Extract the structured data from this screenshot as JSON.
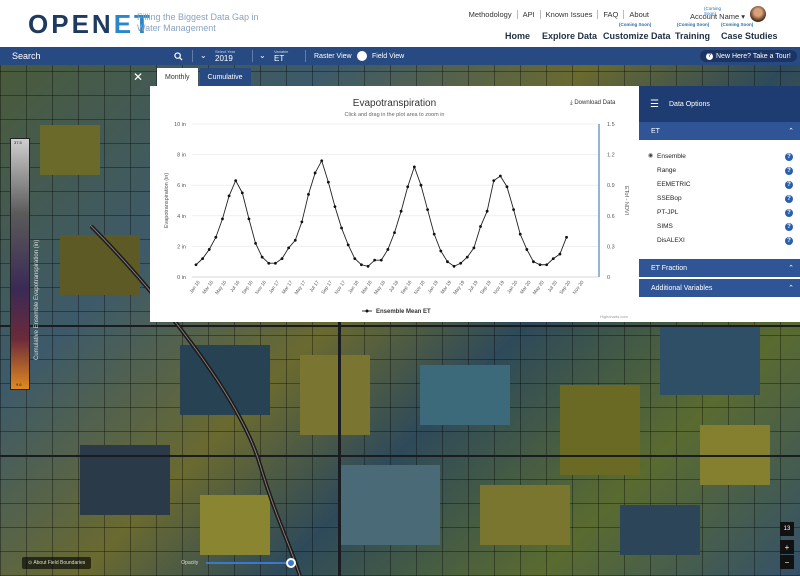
{
  "header": {
    "logo_main": "OPEN",
    "logo_accent": "ET",
    "tagline": "Filling the Biggest Data Gap in Water Management",
    "top_links": [
      "Methodology",
      "API",
      "Known Issues",
      "FAQ",
      "About"
    ],
    "account_coming": "(Coming Soon)",
    "account_name": "Account Name",
    "nav": [
      {
        "label": "Home",
        "badge": ""
      },
      {
        "label": "Explore Data",
        "badge": ""
      },
      {
        "label": "Customize Data",
        "badge": "(Coming Soon)"
      },
      {
        "label": "Training",
        "badge": "(Coming Soon)"
      },
      {
        "label": "Case Studies",
        "badge": "(Coming Soon)"
      }
    ]
  },
  "toolbar": {
    "search_label": "Search",
    "year_label": "Select Year",
    "year_value": "2019",
    "variable_label": "Variable",
    "variable_value": "ET",
    "raster_view": "Raster View",
    "field_view": "Field View",
    "tour_button": "New Here? Take a Tour!"
  },
  "panel": {
    "tabs": [
      "Monthly",
      "Cumulative"
    ],
    "title": "Evapotranspiration",
    "subtitle": "Click and drag in the plot area to zoom in",
    "download": "Download Data",
    "credit": "Highcharts.com"
  },
  "side": {
    "header": "Data Options",
    "et_section": "ET",
    "models": [
      "Ensemble",
      "Range",
      "EEMETRIC",
      "SSEBop",
      "PT-JPL",
      "SIMS",
      "DisALEXI"
    ],
    "et_fraction": "ET Fraction",
    "additional": "Additional Variables"
  },
  "map": {
    "about_button": "About Field Boundaries",
    "opacity_label": "Opacity",
    "zoom_level": "13",
    "legend_title": "Cumulative Ensemble Evapotranspiration (in)",
    "legend_max": "37.5",
    "legend_min": "9.6"
  },
  "chart_data": {
    "type": "line",
    "title": "Evapotranspiration",
    "subtitle": "Click and drag in the plot area to zoom in",
    "ylabel": "Evapotranspiration (in)",
    "y2label": "ETof - NDVI",
    "ylim": [
      0,
      10
    ],
    "y2lim": [
      0,
      1.5
    ],
    "y_ticks": [
      "0 in",
      "2 in",
      "4 in",
      "6 in",
      "8 in",
      "10 in"
    ],
    "y2_ticks": [
      "0",
      "0.3",
      "0.6",
      "0.9",
      "1.2",
      "1.5"
    ],
    "x_ticks": [
      "Jan 16",
      "Mar 16",
      "May 16",
      "Jul 16",
      "Sep 16",
      "Nov 16",
      "Jan 17",
      "Mar 17",
      "May 17",
      "Jul 17",
      "Sep 17",
      "Nov 17",
      "Jan 18",
      "Mar 18",
      "May 18",
      "Jul 18",
      "Sep 18",
      "Nov 18",
      "Jan 19",
      "Mar 19",
      "May 19",
      "Jul 19",
      "Sep 19",
      "Nov 19",
      "Jan 20",
      "Mar 20",
      "May 20",
      "Jul 20",
      "Sep 20",
      "Nov 20"
    ],
    "series": [
      {
        "name": "Ensemble Mean ET",
        "values": [
          0.8,
          1.2,
          1.8,
          2.6,
          3.8,
          5.3,
          6.3,
          5.5,
          3.8,
          2.2,
          1.3,
          0.9,
          0.9,
          1.2,
          1.9,
          2.4,
          3.6,
          5.4,
          6.8,
          7.6,
          6.2,
          4.6,
          3.2,
          2.1,
          1.2,
          0.8,
          0.7,
          1.1,
          1.1,
          1.8,
          2.9,
          4.3,
          5.9,
          7.2,
          6.0,
          4.4,
          2.8,
          1.7,
          1.0,
          0.7,
          0.9,
          1.3,
          1.9,
          3.3,
          4.3,
          6.3,
          6.6,
          5.9,
          4.4,
          2.8,
          1.8,
          1.0,
          0.8,
          0.8,
          1.2,
          1.5,
          2.6
        ]
      }
    ],
    "legend": "bottom-center"
  }
}
